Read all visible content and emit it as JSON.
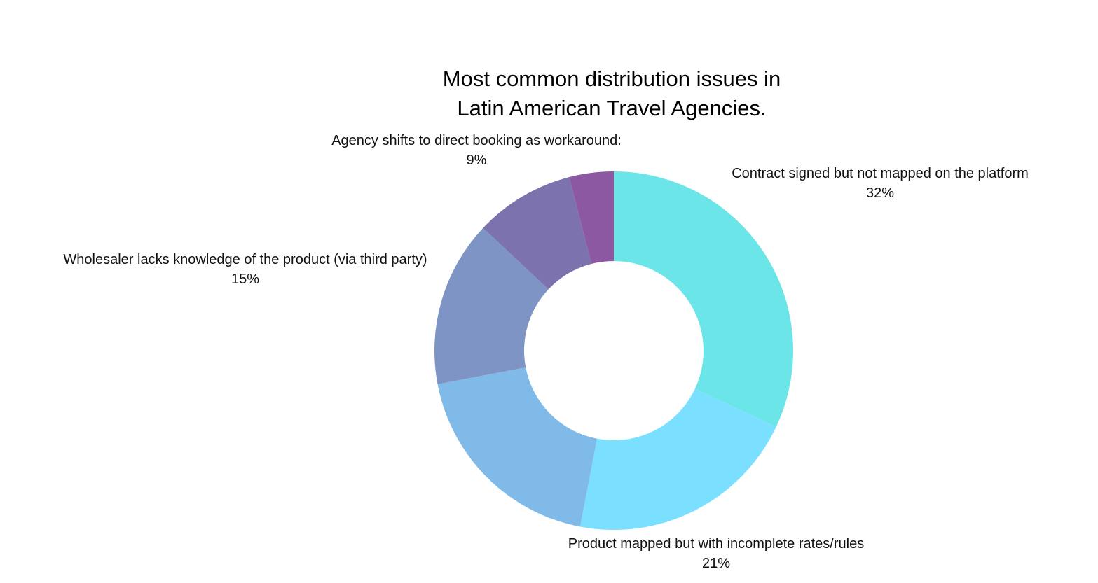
{
  "chart_data": {
    "type": "pie",
    "title": "Most common distribution issues in Latin American Travel Agencies.",
    "title_lines": [
      "Most common distribution issues in",
      "Latin American Travel Agencies."
    ],
    "donut": true,
    "categories": [
      "Contract signed but not mapped on the platform",
      "Product mapped but with incomplete rates/rules",
      "",
      "Wholesaler lacks knowledge of the product (via third party)",
      "Agency shifts to direct booking as workaround:",
      ""
    ],
    "values": [
      32,
      21,
      19,
      15,
      9,
      4
    ],
    "value_labels": [
      "32%",
      "21%",
      "",
      "15%",
      "9%",
      ""
    ],
    "colors": [
      "#6CE5E8",
      "#7BE0FF",
      "#80BAE8",
      "#7E94C4",
      "#7C72AE",
      "#8B58A1"
    ],
    "legend": "none"
  }
}
